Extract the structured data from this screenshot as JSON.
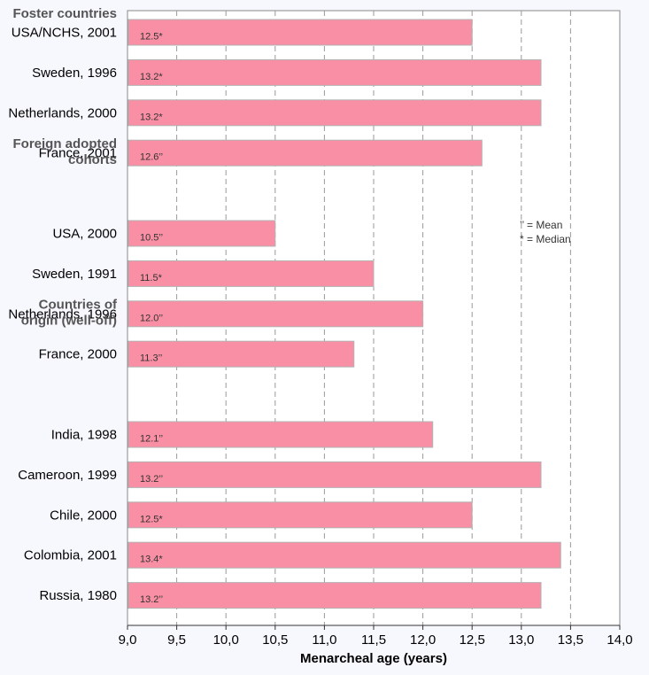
{
  "chart_data": {
    "type": "bar",
    "orientation": "horizontal",
    "xlabel": "Menarcheal age (years)",
    "xlim": [
      9.0,
      14.0
    ],
    "xticks": [
      "9,0",
      "9,5",
      "10,0",
      "10,5",
      "11,0",
      "11,5",
      "12,0",
      "12,5",
      "13,0",
      "13,5",
      "14,0"
    ],
    "grid": "vertical-dashed",
    "bar_color": "#f88fa4",
    "legend": {
      "placement": "right",
      "entries": [
        "’’ = Mean",
        "* = Median"
      ]
    },
    "groups": [
      {
        "title_lines": [
          "Foster countries"
        ],
        "items": [
          {
            "label": "USA/NCHS, 2001",
            "value": 12.5,
            "value_label": "12.5*"
          },
          {
            "label": "Sweden, 1996",
            "value": 13.2,
            "value_label": "13.2*"
          },
          {
            "label": "Netherlands, 2000",
            "value": 13.2,
            "value_label": "13.2*"
          },
          {
            "label": "France, 2001",
            "value": 12.6,
            "value_label": "12.6’’"
          }
        ]
      },
      {
        "title_lines": [
          "Foreign adopted",
          "cohorts"
        ],
        "items": [
          {
            "label": "USA, 2000",
            "value": 10.5,
            "value_label": "10.5’’"
          },
          {
            "label": "Sweden, 1991",
            "value": 11.5,
            "value_label": "11.5*"
          },
          {
            "label": "Netherlands, 1996",
            "value": 12.0,
            "value_label": "12.0’’"
          },
          {
            "label": "France, 2000",
            "value": 11.3,
            "value_label": "11.3’’"
          }
        ]
      },
      {
        "title_lines": [
          "Countries of",
          "origin (well-off)"
        ],
        "items": [
          {
            "label": "India, 1998",
            "value": 12.1,
            "value_label": "12.1’’"
          },
          {
            "label": "Cameroon, 1999",
            "value": 13.2,
            "value_label": "13.2’’"
          },
          {
            "label": "Chile, 2000",
            "value": 12.5,
            "value_label": "12.5*"
          },
          {
            "label": "Colombia, 2001",
            "value": 13.4,
            "value_label": "13.4*"
          },
          {
            "label": "Russia, 1980",
            "value": 13.2,
            "value_label": "13.2’’"
          }
        ]
      }
    ]
  }
}
